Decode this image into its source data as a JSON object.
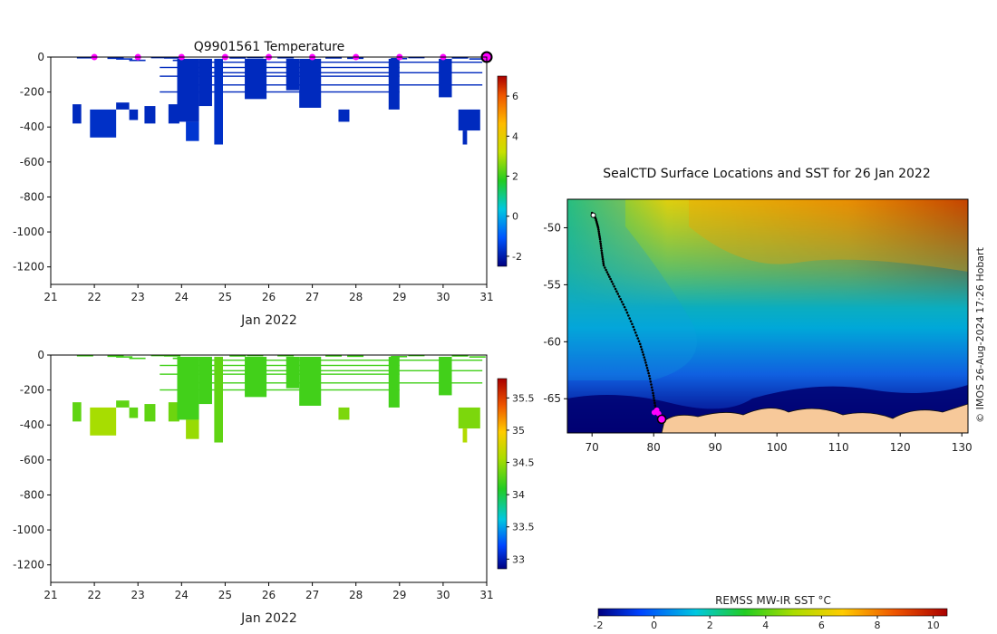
{
  "temperature_panel": {
    "title": "Q9901561  Temperature",
    "xlabel": "Jan 2022",
    "x_ticks": [
      "21",
      "22",
      "23",
      "24",
      "25",
      "26",
      "27",
      "28",
      "29",
      "30",
      "31"
    ],
    "y_ticks": [
      "0",
      "-200",
      "-400",
      "-600",
      "-800",
      "-1000",
      "-1200"
    ],
    "colorbar_ticks": [
      "6",
      "4",
      "2",
      "0",
      "-2"
    ]
  },
  "salinity_panel": {
    "xlabel": "Jan 2022",
    "x_ticks": [
      "21",
      "22",
      "23",
      "24",
      "25",
      "26",
      "27",
      "28",
      "29",
      "30",
      "31"
    ],
    "y_ticks": [
      "0",
      "-200",
      "-400",
      "-600",
      "-800",
      "-1000",
      "-1200"
    ],
    "colorbar_ticks": [
      "35.5",
      "35",
      "34.5",
      "34",
      "33.5",
      "33"
    ]
  },
  "map_panel": {
    "title": "SealCTD Surface Locations and SST for 26 Jan 2022",
    "x_ticks": [
      "70",
      "80",
      "90",
      "100",
      "110",
      "120",
      "130"
    ],
    "y_ticks": [
      "-50",
      "-55",
      "-60",
      "-65"
    ],
    "colorbar_label": "REMSS MW-IR SST °C",
    "colorbar_ticks": [
      "-2",
      "0",
      "2",
      "4",
      "6",
      "8",
      "10"
    ],
    "credit": "© IMOS 26-Aug-2024 17:26 Hobart"
  },
  "colors": {
    "temp_profile": "#00008f",
    "surface_marker": "#ff00ff",
    "land": "#f7c99a",
    "salinity_main": "#22cc22"
  },
  "chart_data": [
    {
      "type": "heatmap",
      "title": "Q9901561  Temperature",
      "xlabel": "Jan 2022",
      "ylabel": "",
      "xlim": [
        21,
        31
      ],
      "ylim": [
        -1300,
        0
      ],
      "colorbar": {
        "min": -2.5,
        "max": 7,
        "ticks": [
          6,
          4,
          2,
          0,
          -2
        ]
      },
      "surface_markers_x": [
        22,
        23,
        24,
        25,
        26,
        27,
        28,
        29,
        30,
        31
      ],
      "profiles": [
        {
          "x0": 21.5,
          "x1": 21.7,
          "top": -270,
          "bottom": -380,
          "value": -1.8
        },
        {
          "x0": 21.9,
          "x1": 22.5,
          "top": -300,
          "bottom": -460,
          "value": -1.7
        },
        {
          "x0": 22.5,
          "x1": 22.8,
          "top": -260,
          "bottom": -300,
          "value": -1.8
        },
        {
          "x0": 22.8,
          "x1": 23.0,
          "top": -300,
          "bottom": -360,
          "value": -1.8
        },
        {
          "x0": 23.15,
          "x1": 23.4,
          "top": -280,
          "bottom": -380,
          "value": -1.8
        },
        {
          "x0": 23.7,
          "x1": 23.95,
          "top": -270,
          "bottom": -380,
          "value": -1.8
        },
        {
          "x0": 23.9,
          "x1": 24.4,
          "top": -10,
          "bottom": -370,
          "value": -1.8
        },
        {
          "x0": 24.1,
          "x1": 24.4,
          "top": -370,
          "bottom": -480,
          "value": -1.6
        },
        {
          "x0": 24.4,
          "x1": 24.7,
          "top": -10,
          "bottom": -280,
          "value": -1.8
        },
        {
          "x0": 24.75,
          "x1": 24.95,
          "top": -10,
          "bottom": -500,
          "value": -1.7
        },
        {
          "x0": 25.45,
          "x1": 25.95,
          "top": -10,
          "bottom": -240,
          "value": -1.8
        },
        {
          "x0": 26.4,
          "x1": 26.7,
          "top": -10,
          "bottom": -190,
          "value": -1.8
        },
        {
          "x0": 26.7,
          "x1": 27.2,
          "top": -10,
          "bottom": -290,
          "value": -1.8
        },
        {
          "x0": 27.6,
          "x1": 27.85,
          "top": -300,
          "bottom": -370,
          "value": -1.8
        },
        {
          "x0": 28.75,
          "x1": 29.0,
          "top": -10,
          "bottom": -300,
          "value": -1.8
        },
        {
          "x0": 29.9,
          "x1": 30.2,
          "top": -10,
          "bottom": -230,
          "value": -1.8
        },
        {
          "x0": 30.35,
          "x1": 30.85,
          "top": -300,
          "bottom": -420,
          "value": -1.8
        },
        {
          "x0": 30.45,
          "x1": 30.55,
          "top": -420,
          "bottom": -500,
          "value": -1.8
        }
      ]
    },
    {
      "type": "heatmap",
      "title": "",
      "xlabel": "Jan 2022",
      "ylabel": "",
      "xlim": [
        21,
        31
      ],
      "ylim": [
        -1300,
        0
      ],
      "colorbar": {
        "min": 32.85,
        "max": 35.8,
        "ticks": [
          35.5,
          35,
          34.5,
          34,
          33.5,
          33
        ]
      },
      "profiles": [
        {
          "x0": 21.5,
          "x1": 21.7,
          "top": -270,
          "bottom": -380,
          "value": 34.3
        },
        {
          "x0": 21.9,
          "x1": 22.5,
          "top": -300,
          "bottom": -460,
          "value": 34.55
        },
        {
          "x0": 22.5,
          "x1": 22.8,
          "top": -260,
          "bottom": -300,
          "value": 34.3
        },
        {
          "x0": 22.8,
          "x1": 23.0,
          "top": -300,
          "bottom": -360,
          "value": 34.3
        },
        {
          "x0": 23.15,
          "x1": 23.4,
          "top": -280,
          "bottom": -380,
          "value": 34.3
        },
        {
          "x0": 23.7,
          "x1": 23.95,
          "top": -270,
          "bottom": -380,
          "value": 34.35
        },
        {
          "x0": 23.9,
          "x1": 24.4,
          "top": -10,
          "bottom": -370,
          "value": 34.2
        },
        {
          "x0": 24.1,
          "x1": 24.4,
          "top": -370,
          "bottom": -480,
          "value": 34.5
        },
        {
          "x0": 24.4,
          "x1": 24.7,
          "top": -10,
          "bottom": -280,
          "value": 34.2
        },
        {
          "x0": 24.75,
          "x1": 24.95,
          "top": -10,
          "bottom": -500,
          "value": 34.3
        },
        {
          "x0": 25.45,
          "x1": 25.95,
          "top": -10,
          "bottom": -240,
          "value": 34.2
        },
        {
          "x0": 26.4,
          "x1": 26.7,
          "top": -10,
          "bottom": -190,
          "value": 34.2
        },
        {
          "x0": 26.7,
          "x1": 27.2,
          "top": -10,
          "bottom": -290,
          "value": 34.2
        },
        {
          "x0": 27.6,
          "x1": 27.85,
          "top": -300,
          "bottom": -370,
          "value": 34.4
        },
        {
          "x0": 28.75,
          "x1": 29.0,
          "top": -10,
          "bottom": -300,
          "value": 34.2
        },
        {
          "x0": 29.9,
          "x1": 30.2,
          "top": -10,
          "bottom": -230,
          "value": 34.2
        },
        {
          "x0": 30.35,
          "x1": 30.85,
          "top": -300,
          "bottom": -420,
          "value": 34.4
        },
        {
          "x0": 30.45,
          "x1": 30.55,
          "top": -420,
          "bottom": -500,
          "value": 34.6
        }
      ]
    },
    {
      "type": "scatter",
      "title": "SealCTD Surface Locations and SST for 26 Jan 2022",
      "xlim": [
        66,
        131
      ],
      "ylim": [
        -68,
        -47.5
      ],
      "track": [
        [
          70.0,
          -48.7
        ],
        [
          70.6,
          -49.2
        ],
        [
          71.0,
          -50.0
        ],
        [
          71.3,
          -51.0
        ],
        [
          71.6,
          -52.2
        ],
        [
          71.9,
          -53.3
        ],
        [
          73.0,
          -54.5
        ],
        [
          74.2,
          -55.8
        ],
        [
          75.5,
          -57.2
        ],
        [
          76.7,
          -58.7
        ],
        [
          77.8,
          -60.2
        ],
        [
          78.6,
          -61.6
        ],
        [
          79.3,
          -63.0
        ],
        [
          79.9,
          -64.5
        ],
        [
          80.3,
          -65.8
        ],
        [
          80.7,
          -66.4
        ],
        [
          81.0,
          -66.7
        ]
      ],
      "recent_positions": [
        [
          80.1,
          -66.2
        ],
        [
          80.5,
          -66.0
        ],
        [
          80.8,
          -66.3
        ],
        [
          81.1,
          -66.6
        ]
      ],
      "current_position": [
        81.3,
        -66.8
      ],
      "colorbar": {
        "label": "REMSS MW-IR SST °C",
        "min": -2,
        "max": 10.5,
        "ticks": [
          -2,
          0,
          2,
          4,
          6,
          8,
          10
        ]
      }
    }
  ]
}
